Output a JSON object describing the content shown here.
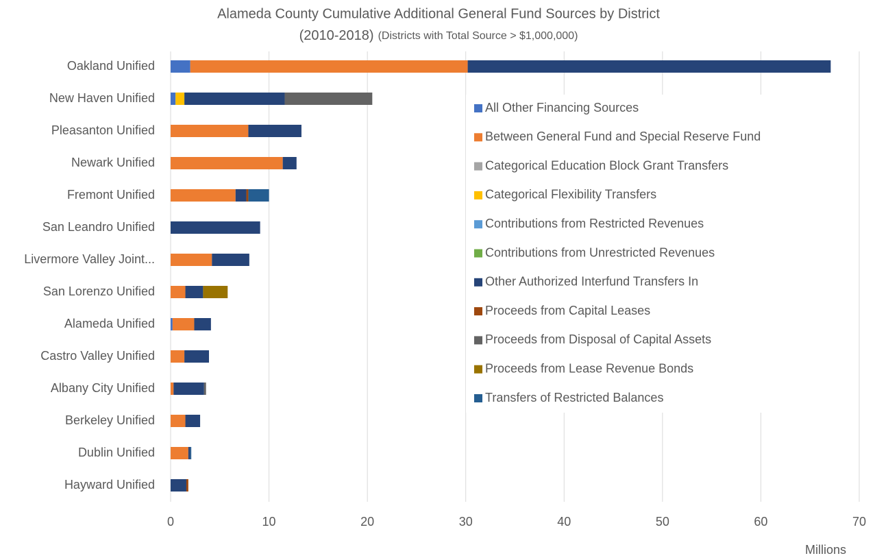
{
  "chart_data": {
    "type": "stacked_barh",
    "title": [
      "Alameda County Cumulative Additional General Fund Sources by District",
      "(2010-2018)"
    ],
    "subtitle": "(Districts with Total Source > $1,000,000)",
    "xlabel": "Millions",
    "categories": [
      "Oakland Unified",
      "New Haven Unified",
      "Pleasanton Unified",
      "Newark Unified",
      "Fremont Unified",
      "San Leandro Unified",
      "Livermore Valley Joint...",
      "San Lorenzo Unified",
      "Alameda Unified",
      "Castro Valley Unified",
      "Albany City Unified",
      "Berkeley Unified",
      "Dublin Unified",
      "Hayward Unified"
    ],
    "series": [
      {
        "name": "All Other Financing Sources",
        "color": "#4472c4",
        "values": [
          2.0,
          0.5,
          0,
          0,
          0,
          0,
          0,
          0,
          0.2,
          0,
          0,
          0,
          0,
          0
        ]
      },
      {
        "name": "Between General Fund and Special Reserve Fund",
        "color": "#ed7d31",
        "values": [
          28.2,
          0,
          7.9,
          11.4,
          6.6,
          0,
          4.2,
          1.5,
          2.2,
          1.4,
          0.3,
          1.5,
          1.8,
          0
        ]
      },
      {
        "name": "Categorical Education Block Grant Transfers",
        "color": "#a5a5a5",
        "values": [
          0,
          0,
          0,
          0,
          0,
          0,
          0,
          0,
          0,
          0,
          0,
          0,
          0,
          0
        ]
      },
      {
        "name": "Categorical Flexibility Transfers",
        "color": "#ffc000",
        "values": [
          0,
          0.9,
          0,
          0,
          0,
          0,
          0,
          0,
          0,
          0,
          0,
          0,
          0,
          0
        ]
      },
      {
        "name": "Contributions from Restricted Revenues",
        "color": "#5b9bd5",
        "values": [
          0,
          0,
          0,
          0,
          0,
          0,
          0,
          0,
          0,
          0,
          0,
          0,
          0,
          0
        ]
      },
      {
        "name": "Contributions from Unrestricted Revenues",
        "color": "#70ad47",
        "values": [
          0,
          0,
          0,
          0,
          0,
          0,
          0,
          0,
          0,
          0,
          0,
          0,
          0,
          0
        ]
      },
      {
        "name": "Other Authorized Interfund Transfers In",
        "color": "#264478",
        "values": [
          36.9,
          10.2,
          5.4,
          1.4,
          1.1,
          9.1,
          3.8,
          1.8,
          1.7,
          2.5,
          3.1,
          1.5,
          0.2,
          1.6
        ]
      },
      {
        "name": "Proceeds from Capital Leases",
        "color": "#9e480e",
        "values": [
          0,
          0,
          0,
          0,
          0.2,
          0,
          0,
          0,
          0,
          0,
          0,
          0,
          0,
          0.2
        ]
      },
      {
        "name": "Proceeds from Disposal of Capital Assets",
        "color": "#636363",
        "values": [
          0,
          8.9,
          0,
          0,
          0,
          0,
          0,
          0,
          0,
          0,
          0.2,
          0,
          0,
          0
        ]
      },
      {
        "name": "Proceeds from Lease Revenue Bonds",
        "color": "#997300",
        "values": [
          0,
          0,
          0,
          0,
          0,
          0,
          0,
          2.5,
          0,
          0,
          0,
          0,
          0,
          0
        ]
      },
      {
        "name": "Transfers of Restricted Balances",
        "color": "#255e91",
        "values": [
          0,
          0,
          0,
          0,
          2.1,
          0,
          0,
          0,
          0,
          0,
          0,
          0,
          0.1,
          0
        ]
      }
    ],
    "xlim": [
      0,
      70
    ],
    "xticks": [
      0,
      10,
      20,
      30,
      40,
      50,
      60,
      70
    ],
    "grid": true,
    "legend": "right"
  }
}
